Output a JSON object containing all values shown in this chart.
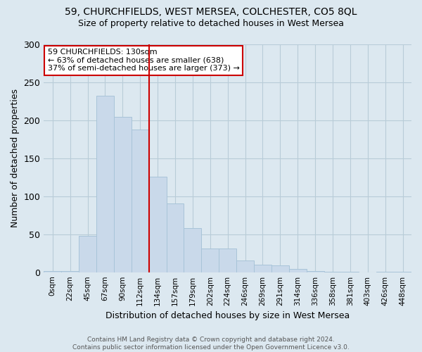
{
  "title1": "59, CHURCHFIELDS, WEST MERSEA, COLCHESTER, CO5 8QL",
  "title2": "Size of property relative to detached houses in West Mersea",
  "xlabel": "Distribution of detached houses by size in West Mersea",
  "ylabel": "Number of detached properties",
  "bar_labels": [
    "0sqm",
    "22sqm",
    "45sqm",
    "67sqm",
    "90sqm",
    "112sqm",
    "134sqm",
    "157sqm",
    "179sqm",
    "202sqm",
    "224sqm",
    "246sqm",
    "269sqm",
    "291sqm",
    "314sqm",
    "336sqm",
    "358sqm",
    "381sqm",
    "403sqm",
    "426sqm",
    "448sqm"
  ],
  "bar_values": [
    2,
    2,
    48,
    232,
    204,
    188,
    126,
    90,
    58,
    31,
    31,
    15,
    10,
    9,
    4,
    2,
    1,
    1,
    0,
    1,
    1
  ],
  "bar_color": "#c9d9ea",
  "bar_edge_color": "#a8c4d8",
  "vline_x": 6,
  "vline_color": "#cc0000",
  "ylim": [
    0,
    300
  ],
  "yticks": [
    0,
    50,
    100,
    150,
    200,
    250,
    300
  ],
  "annotation_title": "59 CHURCHFIELDS: 130sqm",
  "annotation_line1": "← 63% of detached houses are smaller (638)",
  "annotation_line2": "37% of semi-detached houses are larger (373) →",
  "annotation_box_color": "#ffffff",
  "annotation_box_edge_color": "#cc0000",
  "footer1": "Contains HM Land Registry data © Crown copyright and database right 2024.",
  "footer2": "Contains public sector information licensed under the Open Government Licence v3.0.",
  "background_color": "#dce8f0",
  "plot_bg_color": "#dce8f0",
  "grid_color": "#b8ccd8"
}
